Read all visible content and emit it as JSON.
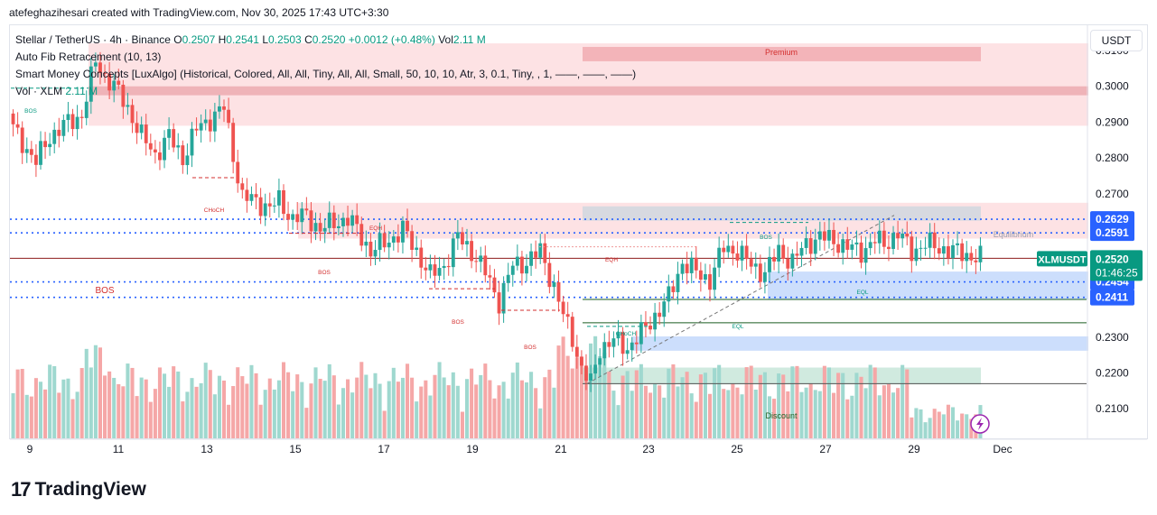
{
  "header": {
    "caption": "atefeghazihesari created with TradingView.com, Nov 30, 2025 17:43 UTC+3:30"
  },
  "legend": {
    "symbol": "Stellar / TetherUS · 4h · Binance",
    "o_label": "O",
    "o": "0.2507",
    "h_label": "H",
    "h": "0.2541",
    "l_label": "L",
    "l": "0.2503",
    "c_label": "C",
    "c": "0.2520",
    "change": "+0.0012 (+0.48%)",
    "vol_label": "Vol",
    "vol": "2.11 M",
    "ind1": "Auto Fib Retracement (10, 13)",
    "ind2": "Smart Money Concepts [LuxAlgo] (Historical, Colored, All, All, Tiny, All, All, Small, 50, 10, 10, Atr, 3, 0.1, Tiny, , 1, ——, ——, ——)",
    "ind3_label": "Vol · XLM",
    "ind3_value": "2.11 M"
  },
  "currency_button": "USDT",
  "last_price": {
    "symbol": "XLMUSDT",
    "price": "0.2520",
    "countdown": "01:46:25"
  },
  "colors": {
    "up": "#26a69a",
    "down": "#ef5350",
    "blue_line": "#2962ff",
    "premium_zone": "#f7c9cc",
    "discount_zone": "#c8e6d9",
    "ob_blue": "#bbd3fb"
  },
  "chart_data": {
    "type": "candlestick",
    "timeframe": "4h",
    "ylim": [
      0.206,
      0.3165
    ],
    "y_ticks": [
      "0.3100",
      "0.3000",
      "0.2900",
      "0.2800",
      "0.2700",
      "0.2300",
      "0.2200",
      "0.2100"
    ],
    "x_ticks": [
      "9",
      "11",
      "13",
      "15",
      "17",
      "19",
      "21",
      "23",
      "25",
      "27",
      "29",
      "Dec"
    ],
    "highlighted_levels": [
      {
        "label": "0.2629",
        "value": 0.2629
      },
      {
        "label": "0.2591",
        "value": 0.2591
      },
      {
        "label": "0.2454",
        "value": 0.2454
      },
      {
        "label": "0.2411",
        "value": 0.2411
      }
    ],
    "zone_labels": [
      "Premium",
      "Equilibrium",
      "Discount"
    ],
    "structure_labels": [
      "BOS",
      "CHoCH",
      "EQH",
      "EQH",
      "BOS",
      "BOS",
      "BOS",
      "BOS",
      "CHoCH",
      "EQL",
      "EQL",
      "BOS"
    ],
    "series": [
      {
        "name": "XLMUSDT",
        "anchors": [
          [
            0,
            0.288
          ],
          [
            5,
            0.279
          ],
          [
            8,
            0.286
          ],
          [
            11,
            0.289
          ],
          [
            15,
            0.292
          ],
          [
            18,
            0.307
          ],
          [
            20,
            0.303
          ],
          [
            22,
            0.3
          ],
          [
            25,
            0.294
          ],
          [
            28,
            0.286
          ],
          [
            31,
            0.281
          ],
          [
            34,
            0.286
          ],
          [
            37,
            0.28
          ],
          [
            40,
            0.288
          ],
          [
            44,
            0.292
          ],
          [
            46,
            0.294
          ],
          [
            48,
            0.281
          ],
          [
            50,
            0.269
          ],
          [
            53,
            0.268
          ],
          [
            56,
            0.266
          ],
          [
            58,
            0.268
          ],
          [
            61,
            0.263
          ],
          [
            64,
            0.264
          ],
          [
            67,
            0.26
          ],
          [
            70,
            0.262
          ],
          [
            73,
            0.263
          ],
          [
            75,
            0.26
          ],
          [
            78,
            0.254
          ],
          [
            82,
            0.257
          ],
          [
            85,
            0.26
          ],
          [
            88,
            0.254
          ],
          [
            91,
            0.247
          ],
          [
            94,
            0.25
          ],
          [
            97,
            0.258
          ],
          [
            100,
            0.254
          ],
          [
            103,
            0.248
          ],
          [
            106,
            0.24
          ],
          [
            109,
            0.25
          ],
          [
            112,
            0.251
          ],
          [
            115,
            0.254
          ],
          [
            118,
            0.244
          ],
          [
            120,
            0.236
          ],
          [
            122,
            0.23
          ],
          [
            124,
            0.221
          ],
          [
            126,
            0.217
          ],
          [
            128,
            0.227
          ],
          [
            131,
            0.229
          ],
          [
            134,
            0.227
          ],
          [
            137,
            0.231
          ],
          [
            140,
            0.236
          ],
          [
            143,
            0.241
          ],
          [
            146,
            0.251
          ],
          [
            149,
            0.248
          ],
          [
            152,
            0.246
          ],
          [
            155,
            0.255
          ],
          [
            158,
            0.254
          ],
          [
            161,
            0.25
          ],
          [
            164,
            0.248
          ],
          [
            167,
            0.254
          ],
          [
            170,
            0.251
          ],
          [
            173,
            0.256
          ],
          [
            176,
            0.258
          ],
          [
            179,
            0.257
          ],
          [
            182,
            0.255
          ],
          [
            185,
            0.254
          ],
          [
            188,
            0.257
          ],
          [
            190,
            0.256
          ],
          [
            193,
            0.259
          ],
          [
            196,
            0.254
          ],
          [
            199,
            0.256
          ],
          [
            202,
            0.255
          ],
          [
            205,
            0.254
          ],
          [
            208,
            0.253
          ],
          [
            211,
            0.252
          ]
        ]
      }
    ]
  },
  "footer": {
    "logo_mark": "17",
    "logo_text": "TradingView"
  }
}
